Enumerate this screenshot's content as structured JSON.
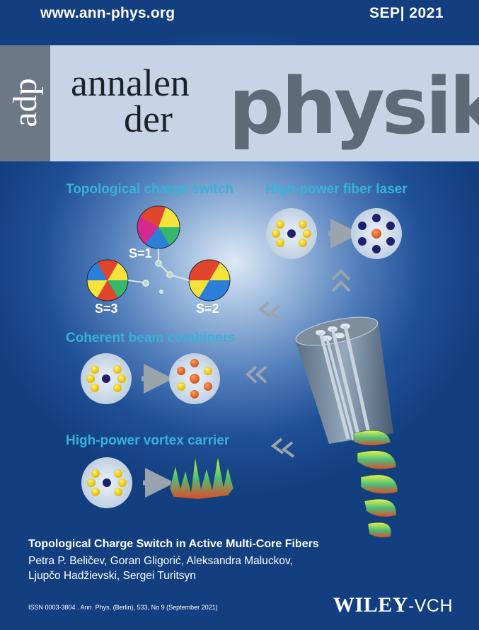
{
  "header": {
    "url": "www.ann-phys.org",
    "date": "SEP| 2021"
  },
  "masthead": {
    "abbrev": "adp",
    "word1": "annalen",
    "word2": "der",
    "word3": "physik"
  },
  "figure": {
    "panel1": {
      "title": "Topological charge switch",
      "labels": [
        "S=1",
        "S=3",
        "S=2"
      ]
    },
    "panel2": {
      "title": "High-power fiber laser"
    },
    "panel3": {
      "title": "Coherent beam combiners"
    },
    "panel4": {
      "title": "High-power vortex carrier"
    }
  },
  "article": {
    "title": "Topological Charge Switch in Active Multi-Core Fibers",
    "authors_line1": "Petra P. Beličev, Goran Gligorić, Aleksandra Maluckov,",
    "authors_line2": "Ljupčo Hadžievski, Sergei Turitsyn"
  },
  "footer": {
    "issn": "ISSN 0003-3804 . Ann. Phys. (Berlin), 533, No 9 (September 2021)",
    "publisher": "WILEY",
    "publisher_suffix": "-VCH"
  },
  "colors": {
    "accent_title": "#38b2d9",
    "masthead_band": "#c7d4e6",
    "physik_text": "#5e6a78"
  }
}
